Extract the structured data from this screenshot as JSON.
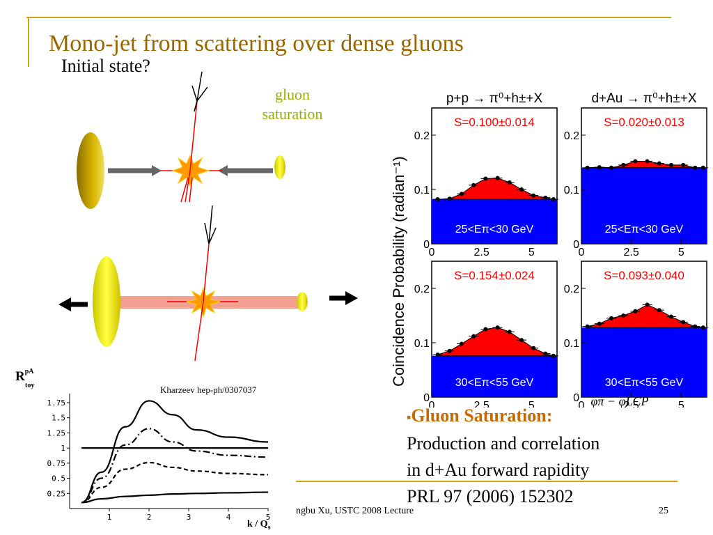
{
  "slide": {
    "title": "Mono-jet from scattering over dense gluons",
    "subtitle": "Initial state?",
    "gluon_label_line1": "gluon",
    "gluon_label_line2": "saturation",
    "citation": "Kharzeev hep-ph/0307037",
    "bullet_marker": "▪",
    "bullet_head": "Gluon Saturation:",
    "bullet_lines": [
      "Production and correlation",
      "in d+Au forward rapidity",
      "PRL 97 (2006) 152302"
    ],
    "footer": "ngbu Xu, USTC 2008 Lecture",
    "page_number": "25"
  },
  "colors": {
    "title": "#996600",
    "gluon_label": "#99b000",
    "bullet_head": "#c46a00",
    "rule": "#d4a017",
    "signal": "#ff0000",
    "background_fill": "#0000ff"
  },
  "chart_data": [
    {
      "type": "line",
      "title": "",
      "ylabel": "R_toy^pA",
      "xlabel": "k / Q_s",
      "xlim": [
        0,
        5
      ],
      "ylim": [
        0,
        1.9
      ],
      "xticks": [
        "1",
        "2",
        "3",
        "4",
        "5"
      ],
      "yticks": [
        "0.25",
        "0.5",
        "0.75",
        "1",
        "1.25",
        "1.5",
        "1.75"
      ],
      "series": [
        {
          "style": "solid",
          "x": [
            0.3,
            0.8,
            1.4,
            2.0,
            2.6,
            3.2,
            4.0,
            5.0
          ],
          "y": [
            0.1,
            0.6,
            1.35,
            1.78,
            1.55,
            1.3,
            1.18,
            1.1
          ]
        },
        {
          "style": "dash-dot",
          "x": [
            0.3,
            0.8,
            1.4,
            2.0,
            2.6,
            3.2,
            4.0,
            5.0
          ],
          "y": [
            0.1,
            0.5,
            1.05,
            1.32,
            1.1,
            0.95,
            0.88,
            0.85
          ]
        },
        {
          "style": "dashed",
          "x": [
            0.3,
            0.8,
            1.4,
            2.0,
            2.6,
            3.2,
            4.0,
            5.0
          ],
          "y": [
            0.1,
            0.35,
            0.65,
            0.76,
            0.68,
            0.62,
            0.58,
            0.56
          ]
        },
        {
          "style": "solid",
          "x": [
            0.3,
            0.8,
            1.4,
            2.0,
            2.6,
            3.2,
            4.0,
            5.0
          ],
          "y": [
            0.1,
            0.16,
            0.2,
            0.22,
            0.24,
            0.25,
            0.26,
            0.27
          ]
        },
        {
          "style": "solid-flat",
          "x": [
            0.3,
            5.0
          ],
          "y": [
            1.0,
            1.0
          ]
        }
      ]
    },
    {
      "type": "area",
      "ylabel": "Coincidence Probability (radian⁻¹)",
      "xlabel": "φπ − φLCP",
      "column_titles": [
        "p+p → π⁰+h±+X",
        "d+Au → π⁰+h±+X"
      ],
      "xlim": [
        0,
        6.28
      ],
      "ylim": [
        0,
        0.25
      ],
      "xticks": [
        "0",
        "2.5",
        "5"
      ],
      "yticks": [
        "0",
        "0.1",
        "0.2"
      ],
      "panels": [
        {
          "S": "S=0.100±0.014",
          "range": "25<Eπ<30 GeV",
          "background": 0.082,
          "points": [
            [
              0.3,
              0.082
            ],
            [
              0.9,
              0.083
            ],
            [
              1.5,
              0.092
            ],
            [
              2.1,
              0.108
            ],
            [
              2.7,
              0.12
            ],
            [
              3.3,
              0.121
            ],
            [
              3.9,
              0.113
            ],
            [
              4.5,
              0.1
            ],
            [
              5.1,
              0.089
            ],
            [
              5.7,
              0.085
            ],
            [
              6.1,
              0.082
            ]
          ]
        },
        {
          "S": "S=0.020±0.013",
          "range": "25<Eπ<30 GeV",
          "background": 0.14,
          "points": [
            [
              0.3,
              0.14
            ],
            [
              0.9,
              0.141
            ],
            [
              1.5,
              0.14
            ],
            [
              2.1,
              0.145
            ],
            [
              2.7,
              0.152
            ],
            [
              3.3,
              0.152
            ],
            [
              3.9,
              0.148
            ],
            [
              4.5,
              0.145
            ],
            [
              5.1,
              0.145
            ],
            [
              5.7,
              0.14
            ],
            [
              6.1,
              0.14
            ]
          ]
        },
        {
          "S": "S=0.154±0.024",
          "range": "30<Eπ<55 GeV",
          "background": 0.076,
          "points": [
            [
              0.3,
              0.078
            ],
            [
              0.9,
              0.085
            ],
            [
              1.5,
              0.098
            ],
            [
              2.1,
              0.112
            ],
            [
              2.7,
              0.125
            ],
            [
              3.3,
              0.128
            ],
            [
              3.9,
              0.12
            ],
            [
              4.5,
              0.105
            ],
            [
              5.1,
              0.09
            ],
            [
              5.7,
              0.08
            ],
            [
              6.1,
              0.076
            ]
          ]
        },
        {
          "S": "S=0.093±0.040",
          "range": "30<Eπ<55 GeV",
          "background": 0.128,
          "points": [
            [
              0.3,
              0.13
            ],
            [
              0.9,
              0.135
            ],
            [
              1.5,
              0.145
            ],
            [
              2.1,
              0.15
            ],
            [
              2.7,
              0.158
            ],
            [
              3.3,
              0.17
            ],
            [
              3.9,
              0.16
            ],
            [
              4.5,
              0.148
            ],
            [
              5.1,
              0.138
            ],
            [
              5.7,
              0.13
            ],
            [
              6.1,
              0.128
            ]
          ]
        }
      ]
    }
  ]
}
